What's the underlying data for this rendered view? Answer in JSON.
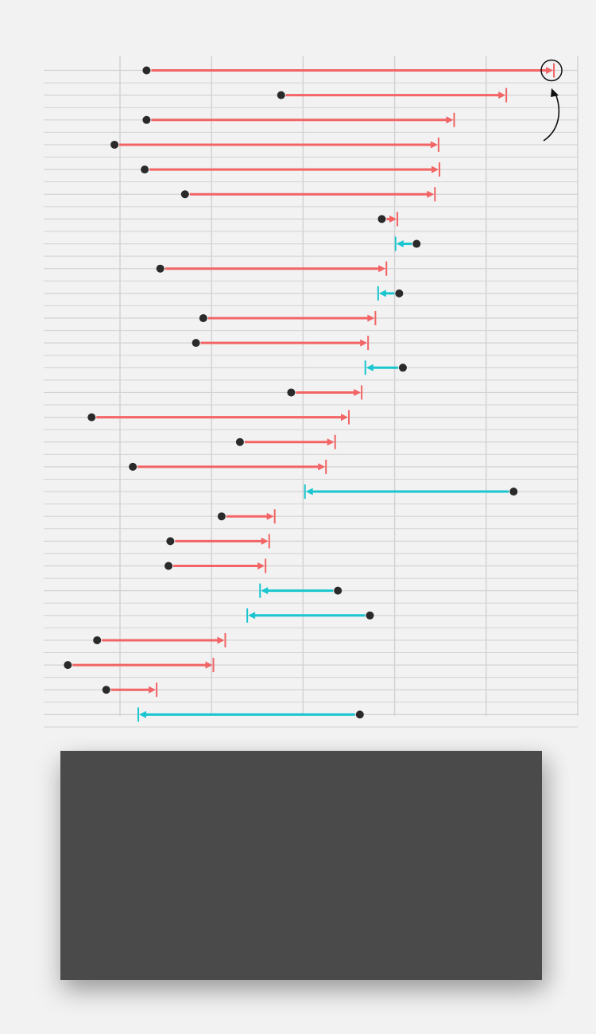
{
  "chart_data": {
    "type": "dumbbell-arrow",
    "title": "",
    "xlabel": "",
    "ylabel": "",
    "xlim": [
      -0.83,
      5
    ],
    "grid": true,
    "x_gridlines": [
      0,
      1,
      2,
      3,
      4,
      5
    ],
    "colors": {
      "increase": "#f26465",
      "decrease": "#19c6cf",
      "dot": "#2a2a2a",
      "grid": "#d3d3d3",
      "annotation": "#111111"
    },
    "rows": [
      {
        "start": 0.29,
        "end": 4.74,
        "highlighted": true
      },
      {
        "start": 1.76,
        "end": 4.22
      },
      {
        "start": 0.29,
        "end": 3.65
      },
      {
        "start": -0.06,
        "end": 3.48
      },
      {
        "start": 0.27,
        "end": 3.49
      },
      {
        "start": 0.71,
        "end": 3.44
      },
      {
        "start": 2.86,
        "end": 3.03
      },
      {
        "start": 3.24,
        "end": 3.01
      },
      {
        "start": 0.44,
        "end": 2.91
      },
      {
        "start": 3.05,
        "end": 2.82
      },
      {
        "start": 0.91,
        "end": 2.79
      },
      {
        "start": 0.83,
        "end": 2.71
      },
      {
        "start": 3.09,
        "end": 2.68
      },
      {
        "start": 1.87,
        "end": 2.64
      },
      {
        "start": -0.31,
        "end": 2.5
      },
      {
        "start": 1.31,
        "end": 2.35
      },
      {
        "start": 0.14,
        "end": 2.25
      },
      {
        "start": 4.3,
        "end": 2.02
      },
      {
        "start": 1.11,
        "end": 1.69
      },
      {
        "start": 0.55,
        "end": 1.63
      },
      {
        "start": 0.53,
        "end": 1.59
      },
      {
        "start": 2.38,
        "end": 1.53
      },
      {
        "start": 2.73,
        "end": 1.39
      },
      {
        "start": -0.25,
        "end": 1.15
      },
      {
        "start": -0.57,
        "end": 1.02
      },
      {
        "start": -0.15,
        "end": 0.4
      },
      {
        "start": 2.62,
        "end": 0.2
      }
    ]
  }
}
